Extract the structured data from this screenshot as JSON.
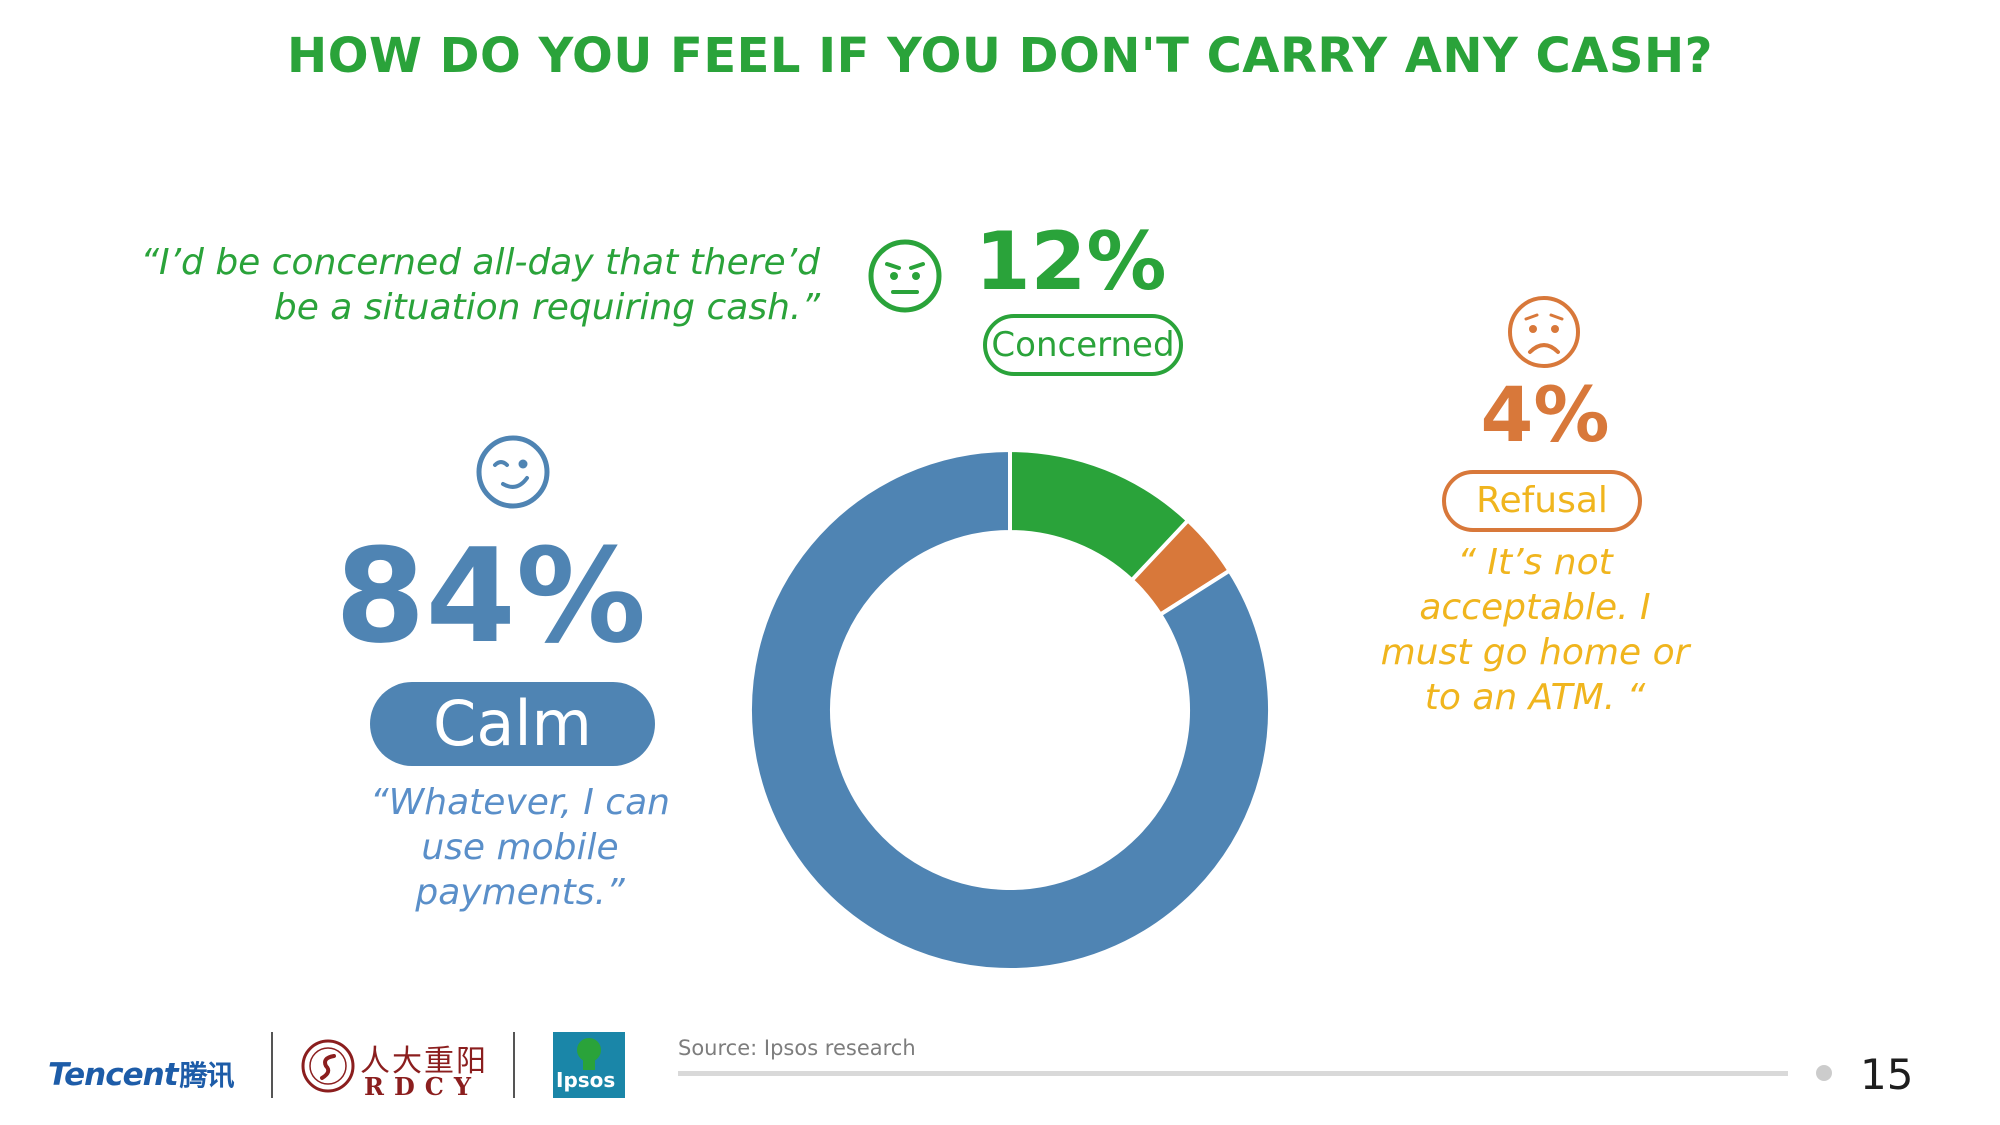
{
  "title": "HOW DO YOU FEEL IF YOU DON'T CARRY ANY CASH?",
  "quotes": {
    "concerned": [
      "“I’d be concerned all-day that there’d",
      "be a situation requiring cash.”"
    ],
    "calm": [
      "“Whatever, I can",
      "use mobile",
      "payments.”"
    ],
    "refusal": [
      "“ It’s not",
      "acceptable. I",
      "must go home or",
      "to an ATM. “"
    ]
  },
  "icons": {
    "concerned": "angry-face-icon",
    "refusal": "sad-face-icon",
    "calm": "winking-face-icon"
  },
  "colors": {
    "calm": "#4f84b3",
    "concerned": "#2aa33a",
    "refusal": "#d8783a",
    "refusal_text": "#f0b51e"
  },
  "chart_data": {
    "type": "pie",
    "style": "donut",
    "slices": [
      {
        "label": "Concerned",
        "value": 12,
        "display": "12%",
        "color": "#2aa33a"
      },
      {
        "label": "Refusal",
        "value": 4,
        "display": "4%",
        "color": "#d8783a"
      },
      {
        "label": "Calm",
        "value": 84,
        "display": "84%",
        "color": "#4f84b3"
      }
    ]
  },
  "footer": {
    "source": "Source: Ipsos research",
    "page_number": "15",
    "logos": {
      "tencent": "Tencent",
      "tencent_cn": "腾讯",
      "rdcy_cn": "人大重阳",
      "rdcy_en": "RDCY",
      "ipsos": "Ipsos"
    }
  }
}
